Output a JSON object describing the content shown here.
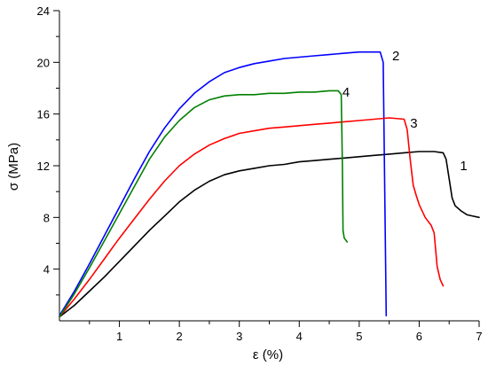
{
  "chart_data": {
    "type": "line",
    "title": "",
    "xlabel": "ε (%)",
    "ylabel": "σ (MPa)",
    "xlim": [
      0,
      7
    ],
    "ylim": [
      0,
      24
    ],
    "xticks": [
      1,
      2,
      3,
      4,
      5,
      6,
      7
    ],
    "yticks": [
      4,
      8,
      12,
      16,
      20,
      24
    ],
    "grid": false,
    "legend": "none",
    "series": [
      {
        "name": "1",
        "color": "#000000",
        "label_at": [
          6.68,
          12.0
        ],
        "x": [
          0,
          0.25,
          0.5,
          0.75,
          1.0,
          1.25,
          1.5,
          1.75,
          2.0,
          2.25,
          2.5,
          2.75,
          3.0,
          3.25,
          3.5,
          3.75,
          4.0,
          4.25,
          4.5,
          4.75,
          5.0,
          5.25,
          5.5,
          5.75,
          6.0,
          6.25,
          6.4,
          6.45,
          6.5,
          6.55,
          6.6,
          6.7,
          6.8,
          6.9,
          7.0
        ],
        "y": [
          0.3,
          1.2,
          2.3,
          3.4,
          4.6,
          5.8,
          7.0,
          8.1,
          9.2,
          10.1,
          10.8,
          11.3,
          11.6,
          11.8,
          12.0,
          12.1,
          12.3,
          12.4,
          12.5,
          12.6,
          12.7,
          12.8,
          12.9,
          13.0,
          13.1,
          13.1,
          13.0,
          12.5,
          11.0,
          9.5,
          8.9,
          8.5,
          8.2,
          8.1,
          8.0
        ]
      },
      {
        "name": "2",
        "color": "#0000ff",
        "label_at": [
          5.55,
          20.5
        ],
        "x": [
          0,
          0.25,
          0.5,
          0.75,
          1.0,
          1.25,
          1.5,
          1.75,
          2.0,
          2.25,
          2.5,
          2.75,
          3.0,
          3.25,
          3.5,
          3.75,
          4.0,
          4.25,
          4.5,
          4.75,
          5.0,
          5.25,
          5.35,
          5.4,
          5.45
        ],
        "y": [
          0.4,
          2.3,
          4.4,
          6.6,
          8.8,
          11.0,
          13.1,
          14.9,
          16.4,
          17.6,
          18.5,
          19.2,
          19.6,
          19.9,
          20.1,
          20.3,
          20.4,
          20.5,
          20.6,
          20.7,
          20.8,
          20.8,
          20.8,
          20.0,
          0.4
        ]
      },
      {
        "name": "3",
        "color": "#ff0000",
        "label_at": [
          5.85,
          15.3
        ],
        "x": [
          0,
          0.25,
          0.5,
          0.75,
          1.0,
          1.25,
          1.5,
          1.75,
          2.0,
          2.25,
          2.5,
          2.75,
          3.0,
          3.25,
          3.5,
          3.75,
          4.0,
          4.25,
          4.5,
          4.75,
          5.0,
          5.25,
          5.5,
          5.75,
          5.8,
          5.85,
          5.9,
          5.95,
          6.0,
          6.1,
          6.2,
          6.25,
          6.3,
          6.35,
          6.4
        ],
        "y": [
          0.3,
          1.7,
          3.2,
          4.8,
          6.4,
          7.9,
          9.4,
          10.8,
          12.0,
          12.9,
          13.6,
          14.1,
          14.5,
          14.7,
          14.9,
          15.0,
          15.1,
          15.2,
          15.3,
          15.4,
          15.5,
          15.6,
          15.7,
          15.6,
          14.8,
          12.5,
          10.5,
          9.7,
          9.0,
          8.0,
          7.4,
          6.8,
          4.2,
          3.2,
          2.7
        ]
      },
      {
        "name": "4",
        "color": "#008000",
        "label_at": [
          4.72,
          17.7
        ],
        "x": [
          0,
          0.25,
          0.5,
          0.75,
          1.0,
          1.25,
          1.5,
          1.75,
          2.0,
          2.25,
          2.5,
          2.75,
          3.0,
          3.25,
          3.5,
          3.75,
          4.0,
          4.25,
          4.5,
          4.65,
          4.7,
          4.72,
          4.73,
          4.75,
          4.8
        ],
        "y": [
          0.3,
          2.1,
          4.1,
          6.2,
          8.3,
          10.4,
          12.5,
          14.2,
          15.5,
          16.5,
          17.1,
          17.4,
          17.5,
          17.5,
          17.6,
          17.6,
          17.7,
          17.7,
          17.8,
          17.8,
          17.5,
          12.0,
          7.0,
          6.4,
          6.1
        ]
      }
    ]
  }
}
